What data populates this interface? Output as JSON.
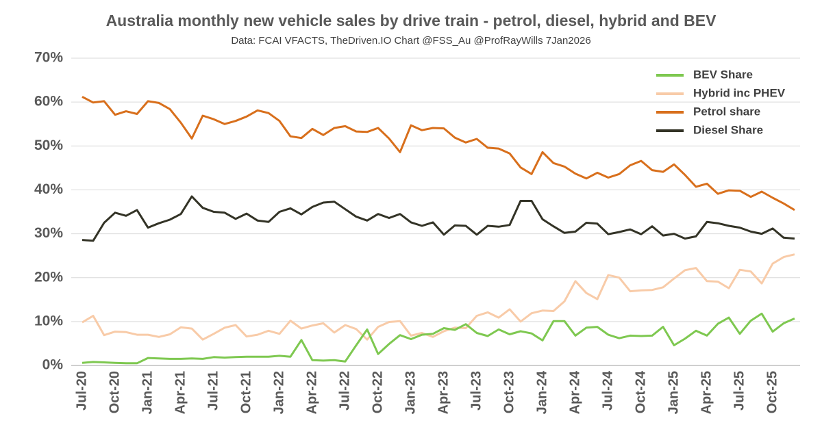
{
  "chart_data": {
    "type": "line",
    "title": "Australia monthly new vehicle sales by drive train - petrol, diesel, hybrid and BEV",
    "subtitle": "Data: FCAI VFACTS, TheDriven.IO  Chart @FSS_Au @ProfRayWills 7Jan2026",
    "categories": [
      "Jul-20",
      null,
      null,
      "Oct-20",
      null,
      null,
      "Jan-21",
      null,
      null,
      "Apr-21",
      null,
      null,
      "Jul-21",
      null,
      null,
      "Oct-21",
      null,
      null,
      "Jan-22",
      null,
      null,
      "Apr-22",
      null,
      null,
      "Jul-22",
      null,
      null,
      "Oct-22",
      null,
      null,
      "Jan-23",
      null,
      null,
      "Apr-23",
      null,
      null,
      "Jul-23",
      null,
      null,
      "Oct-23",
      null,
      null,
      "Jan-24",
      null,
      null,
      "Apr-24",
      null,
      null,
      "Jul-24",
      null,
      null,
      "Oct-24",
      null,
      null,
      "Jan-25",
      null,
      null,
      "Apr-25",
      null,
      null,
      "Jul-25",
      null,
      null,
      "Oct-25",
      null,
      null
    ],
    "series": [
      {
        "name": "BEV Share",
        "color": "#7ec850",
        "values": [
          0.6,
          0.8,
          0.7,
          0.6,
          0.5,
          0.5,
          1.7,
          1.6,
          1.5,
          1.5,
          1.6,
          1.5,
          1.9,
          1.8,
          1.9,
          2.0,
          2.0,
          2.0,
          2.2,
          2.0,
          5.8,
          1.2,
          1.1,
          1.2,
          0.9,
          4.6,
          8.2,
          2.6,
          4.9,
          6.9,
          6.0,
          7.0,
          7.2,
          8.5,
          8.1,
          9.4,
          7.4,
          6.7,
          8.2,
          7.1,
          7.8,
          7.3,
          5.7,
          10.1,
          10.1,
          6.8,
          8.6,
          8.8,
          7.0,
          6.2,
          6.8,
          6.7,
          6.8,
          8.8,
          4.6,
          6.1,
          7.9,
          6.8,
          9.5,
          10.9,
          7.2,
          10.2,
          11.8,
          7.7,
          9.6,
          10.7
        ]
      },
      {
        "name": "Hybrid inc PHEV",
        "color": "#f8cba8",
        "values": [
          9.8,
          11.3,
          6.9,
          7.7,
          7.6,
          7.0,
          7.0,
          6.5,
          7.1,
          8.7,
          8.4,
          5.9,
          7.2,
          8.6,
          9.2,
          6.6,
          7.0,
          7.9,
          7.2,
          10.2,
          8.4,
          9.1,
          9.6,
          7.5,
          9.2,
          8.3,
          5.9,
          8.8,
          9.9,
          10.1,
          6.8,
          7.4,
          6.5,
          7.8,
          8.6,
          8.5,
          11.3,
          12.1,
          10.9,
          12.8,
          10.0,
          11.9,
          12.5,
          12.4,
          14.6,
          19.2,
          16.5,
          15.1,
          20.6,
          20.0,
          16.9,
          17.1,
          17.2,
          17.8,
          19.8,
          21.7,
          22.2,
          19.2,
          19.1,
          17.6,
          21.8,
          21.4,
          18.7,
          23.2,
          24.7,
          25.3
        ]
      },
      {
        "name": "Petrol share",
        "color": "#d86f1c",
        "values": [
          61.2,
          59.9,
          60.2,
          57.1,
          57.9,
          57.3,
          60.2,
          59.8,
          58.4,
          55.3,
          51.7,
          56.9,
          56.1,
          55.0,
          55.7,
          56.7,
          58.1,
          57.5,
          55.7,
          52.2,
          51.8,
          53.9,
          52.5,
          54.1,
          54.5,
          53.3,
          53.2,
          54.1,
          51.7,
          48.6,
          54.7,
          53.6,
          54.1,
          54.0,
          51.9,
          50.8,
          51.6,
          49.6,
          49.4,
          48.3,
          45.1,
          43.6,
          48.6,
          46.1,
          45.3,
          43.7,
          42.6,
          43.9,
          42.8,
          43.6,
          45.6,
          46.6,
          44.5,
          44.1,
          45.8,
          43.4,
          40.7,
          41.4,
          39.1,
          39.9,
          39.8,
          38.4,
          39.6,
          38.2,
          36.9,
          35.4
        ]
      },
      {
        "name": "Diesel Share",
        "color": "#333326",
        "values": [
          28.6,
          28.4,
          32.5,
          34.8,
          34.1,
          35.4,
          31.4,
          32.4,
          33.2,
          34.5,
          38.5,
          35.9,
          35.0,
          34.8,
          33.4,
          34.6,
          33.0,
          32.7,
          35.0,
          35.8,
          34.4,
          36.1,
          37.1,
          37.3,
          35.6,
          33.9,
          33.0,
          34.5,
          33.6,
          34.5,
          32.6,
          31.8,
          32.6,
          29.8,
          31.9,
          31.8,
          29.8,
          31.8,
          31.6,
          32.0,
          37.5,
          37.5,
          33.3,
          31.7,
          30.2,
          30.5,
          32.5,
          32.3,
          29.9,
          30.4,
          31.0,
          29.9,
          31.7,
          29.6,
          30.0,
          28.9,
          29.4,
          32.7,
          32.4,
          31.8,
          31.4,
          30.5,
          30.0,
          31.2,
          29.1,
          28.9
        ]
      }
    ],
    "ylim": [
      0,
      70
    ],
    "yticks": [
      {
        "value": 0,
        "label": "0%"
      },
      {
        "value": 10,
        "label": "10%"
      },
      {
        "value": 20,
        "label": "20%"
      },
      {
        "value": 30,
        "label": "30%"
      },
      {
        "value": 40,
        "label": "40%"
      },
      {
        "value": 50,
        "label": "50%"
      },
      {
        "value": 60,
        "label": "60%"
      },
      {
        "value": 70,
        "label": "70%"
      }
    ],
    "grid": true,
    "legend": "top-right"
  }
}
